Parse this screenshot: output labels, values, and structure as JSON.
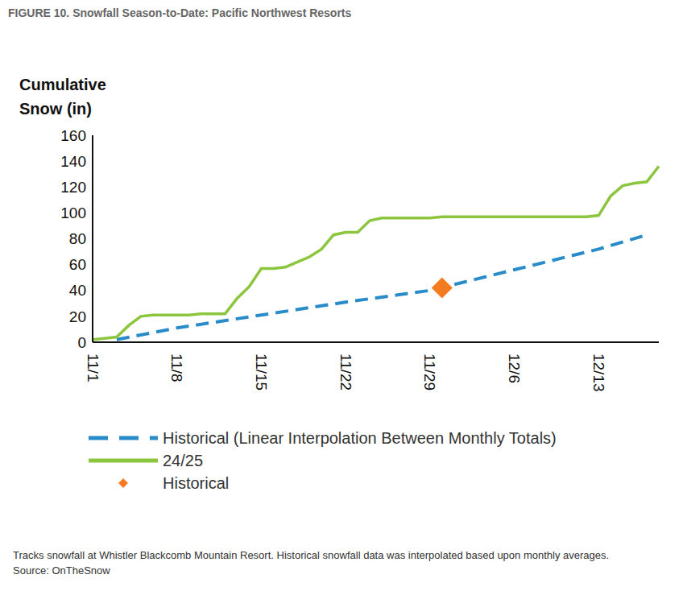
{
  "chart_data": {
    "type": "line",
    "title": "FIGURE 10. Snowfall Season-to-Date: Pacific Northwest Resorts",
    "y_label": "Cumulative Snow (in)",
    "categories": [
      "11/1",
      null,
      null,
      null,
      null,
      null,
      null,
      "11/8",
      null,
      null,
      null,
      null,
      null,
      null,
      "11/15",
      null,
      null,
      null,
      null,
      null,
      null,
      "11/22",
      null,
      null,
      null,
      null,
      null,
      null,
      "11/29",
      null,
      null,
      null,
      null,
      null,
      null,
      "12/6",
      null,
      null,
      null,
      null,
      null,
      null,
      "12/13",
      null,
      null,
      null,
      null,
      null
    ],
    "series": [
      {
        "name": "Historical (Linear Interpolation Between Monthly Totals)",
        "color": "#2a8bc9",
        "type": "line",
        "line_style": "dashed",
        "values": [
          null,
          null,
          2,
          null,
          null,
          null,
          null,
          11,
          null,
          null,
          null,
          null,
          null,
          null,
          21,
          null,
          null,
          null,
          null,
          null,
          null,
          31,
          null,
          null,
          null,
          null,
          null,
          null,
          40,
          null,
          null,
          null,
          null,
          null,
          null,
          56,
          null,
          null,
          null,
          null,
          null,
          null,
          72,
          null,
          null,
          null,
          83,
          null
        ]
      },
      {
        "name": "24/25",
        "color": "#8cc63f",
        "type": "line",
        "line_style": "solid",
        "values": [
          2,
          3,
          4,
          13,
          20,
          21,
          21,
          21,
          21,
          22,
          22,
          22,
          34,
          43,
          57,
          57,
          58,
          62,
          66,
          72,
          83,
          85,
          85,
          94,
          96,
          96,
          96,
          96,
          96,
          97,
          97,
          97,
          97,
          97,
          97,
          97,
          97,
          97,
          97,
          97,
          97,
          97,
          98,
          113,
          121,
          123,
          124,
          136
        ]
      },
      {
        "name": "Historical",
        "color": "#f47c20",
        "type": "scatter",
        "marker": "diamond",
        "values": [
          null,
          null,
          null,
          null,
          null,
          null,
          null,
          null,
          null,
          null,
          null,
          null,
          null,
          null,
          null,
          null,
          null,
          null,
          null,
          null,
          null,
          null,
          null,
          null,
          null,
          null,
          null,
          null,
          null,
          42,
          null,
          null,
          null,
          null,
          null,
          null,
          null,
          null,
          null,
          null,
          null,
          null,
          null,
          null,
          null,
          null,
          null,
          null
        ]
      }
    ],
    "ylim": [
      0,
      160
    ],
    "yticks": [
      0,
      20,
      40,
      60,
      80,
      100,
      120,
      140,
      160
    ],
    "grid": false,
    "legend": "bottom",
    "note": "Tracks snowfall at Whistler Blackcomb Mountain Resort. Historical snowfall data was interpolated based upon monthly averages.",
    "source": "Source: OnTheSnow"
  }
}
